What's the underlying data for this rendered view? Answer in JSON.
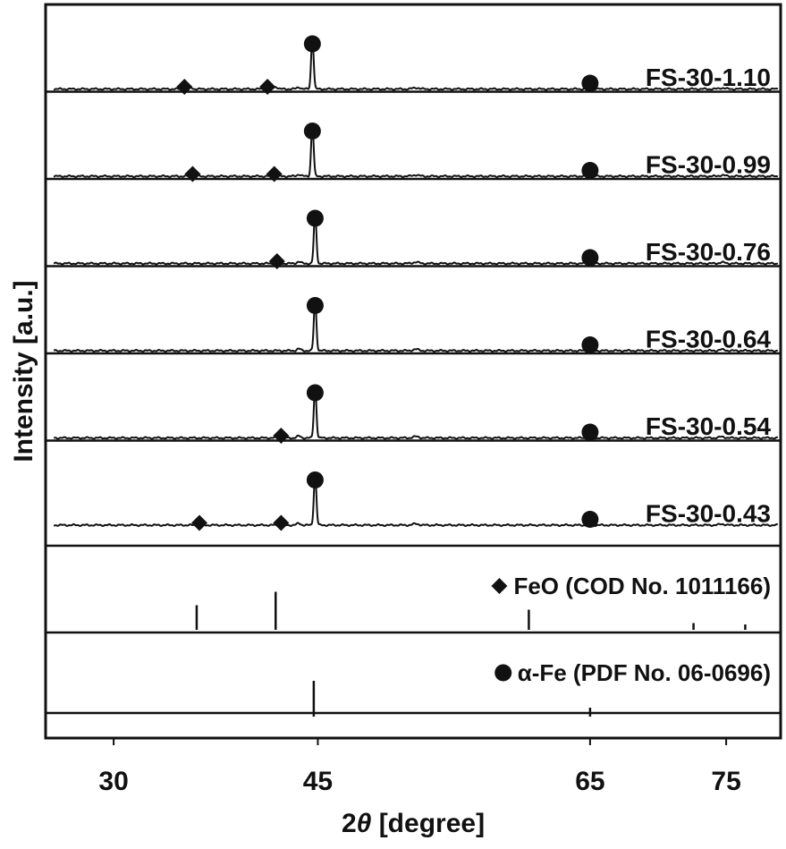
{
  "chart_data": {
    "type": "line",
    "xlabel_prefix": "2",
    "xlabel_symbol": "θ",
    "xlabel_suffix": " [degree]",
    "ylabel": "Intensity [a.u.]",
    "xlim": [
      25,
      79
    ],
    "xticks": [
      {
        "value": 30,
        "label": "30"
      },
      {
        "value": 45,
        "label": "45"
      },
      {
        "value": 65,
        "label": "65"
      },
      {
        "value": 75,
        "label": "75"
      }
    ],
    "yticks": "none",
    "grid": false,
    "legend": "none",
    "series": [
      {
        "name": "FS-30-1.10",
        "feo_markers": [
          35.2,
          41.3
        ],
        "fe_markers": [
          44.6,
          65.0
        ],
        "feo_peaks": [
          35.6,
          41.9
        ],
        "fe_peaks": [
          44.6,
          65.0
        ]
      },
      {
        "name": "FS-30-0.99",
        "feo_markers": [
          35.8,
          41.8
        ],
        "fe_markers": [
          44.6,
          65.0
        ],
        "feo_peaks": [
          35.8,
          41.8
        ],
        "fe_peaks": [
          44.6,
          65.0
        ]
      },
      {
        "name": "FS-30-0.76",
        "feo_markers": [
          42.0
        ],
        "fe_markers": [
          44.8,
          65.0
        ],
        "feo_peaks": [
          42.0
        ],
        "fe_peaks": [
          44.8,
          65.0
        ]
      },
      {
        "name": "FS-30-0.64",
        "feo_markers": [],
        "fe_markers": [
          44.8,
          65.0
        ],
        "feo_peaks": [],
        "fe_peaks": [
          44.8,
          65.0
        ]
      },
      {
        "name": "FS-30-0.54",
        "feo_markers": [
          42.3
        ],
        "fe_markers": [
          44.8,
          65.0
        ],
        "feo_peaks": [
          42.3
        ],
        "fe_peaks": [
          44.8,
          65.0
        ]
      },
      {
        "name": "FS-30-0.43",
        "feo_markers": [
          36.3,
          42.3
        ],
        "fe_markers": [
          44.8,
          65.0
        ],
        "feo_peaks": [
          36.3,
          42.3
        ],
        "fe_peaks": [
          44.8,
          65.0
        ]
      }
    ],
    "references": [
      {
        "name": "FeO",
        "label": "FeO (COD No. 1011166)",
        "marker": "diamond",
        "lines": [
          {
            "x": 36.1,
            "h": 0.55
          },
          {
            "x": 41.9,
            "h": 0.85
          },
          {
            "x": 60.5,
            "h": 0.45
          },
          {
            "x": 72.6,
            "h": 0.15
          },
          {
            "x": 76.4,
            "h": 0.12
          }
        ]
      },
      {
        "name": "α-Fe",
        "label": "α-Fe (PDF No. 06-0696)",
        "marker": "circle",
        "lines": [
          {
            "x": 44.7,
            "h": 0.8
          },
          {
            "x": 65.0,
            "h": 0.2
          }
        ]
      }
    ]
  }
}
